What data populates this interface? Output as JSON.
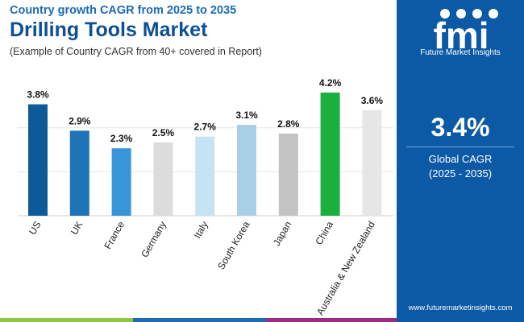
{
  "header": {
    "subtitle": "Country growth CAGR from 2025 to 2035",
    "title": "Drilling Tools Market",
    "note": "(Example of Country CAGR from 40+ covered in Report)"
  },
  "sidebar": {
    "logo_letters": "fmi",
    "logo_text": "Future Market Insights",
    "cagr_value": "3.4%",
    "cagr_label": "Global CAGR",
    "cagr_period": "(2025 - 2035)",
    "website": "www.futuremarketinsights.com"
  },
  "colors": {
    "brand_blue": "#0c5aa6",
    "title_blue": "#0d4f95",
    "strip": [
      "#8dc63f",
      "#1b6bb5",
      "#9b2c7f"
    ]
  },
  "chart_data": {
    "type": "bar",
    "categories": [
      "US",
      "UK",
      "France",
      "Germany",
      "Italy",
      "South Korea",
      "Japan",
      "China",
      "Australia & New Zealand"
    ],
    "values": [
      3.8,
      2.9,
      2.3,
      2.5,
      2.7,
      3.1,
      2.8,
      4.2,
      3.6
    ],
    "data_labels": [
      "3.8%",
      "2.9%",
      "2.3%",
      "2.5%",
      "2.7%",
      "3.1%",
      "2.8%",
      "4.2%",
      "3.6%"
    ],
    "bar_colors": [
      "#0d5a98",
      "#1f74b7",
      "#3895d8",
      "#dcdcdc",
      "#c6e3f4",
      "#a9cfe6",
      "#c3c3c3",
      "#19b03b",
      "#e6e6e6"
    ],
    "ylim": [
      0,
      4.2
    ],
    "grid": true
  }
}
